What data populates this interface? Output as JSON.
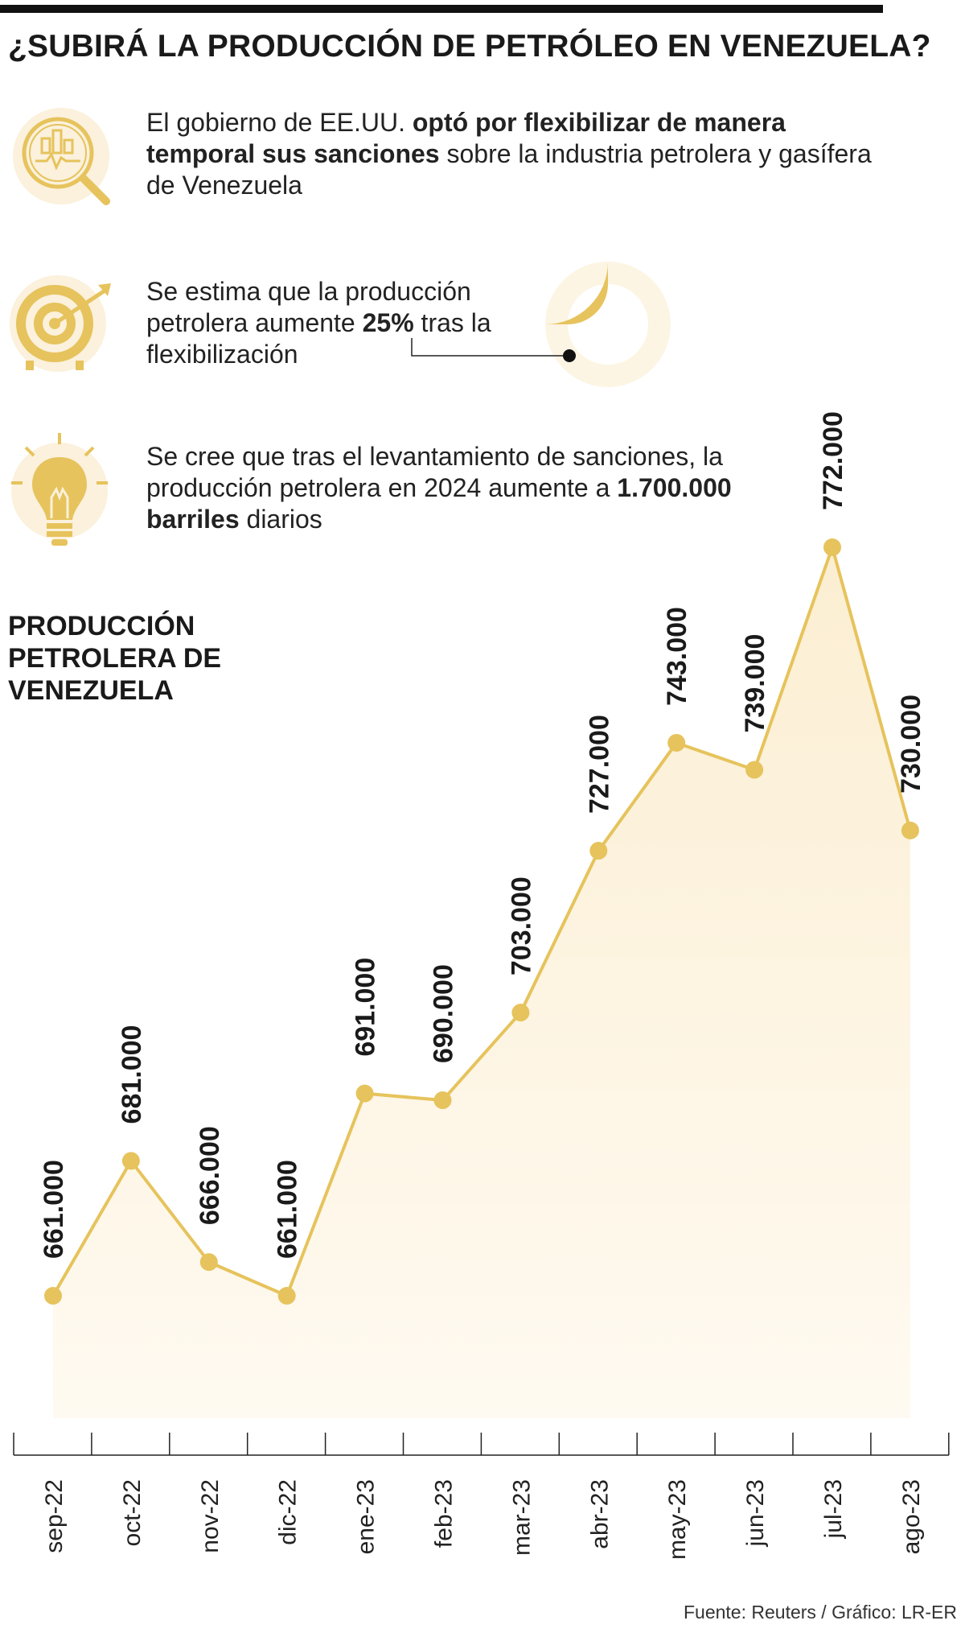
{
  "title": "¿SUBIRÁ LA PRODUCCIÓN DE PETRÓLEO EN VENEZUELA?",
  "facts": [
    {
      "icon": "magnifier-chart-icon",
      "pre": "El gobierno de EE.UU. ",
      "bold": "optó por flexibilizar de manera temporal sus sanciones",
      "post": " sobre la industria petrolera y gasífera de Venezuela"
    },
    {
      "icon": "target-arrow-icon",
      "pre": "Se estima que la producción petrolera aumente ",
      "bold": "25%",
      "post": " tras la flexibilización",
      "donut_percent": 25
    },
    {
      "icon": "light-bulb-icon",
      "pre": "Se cree que tras el levantamiento de sanciones, la producción petrolera en 2024 aumente a ",
      "bold": "1.700.000 barriles",
      "post": " diarios"
    }
  ],
  "chart_title": "PRODUCCIÓN PETROLERA DE VENEZUELA",
  "source": "Fuente: Reuters / Gráfico: LR-ER",
  "colors": {
    "accent": "#e6c35c",
    "fill": "#fdf5e4",
    "icon_bg": "#fbf1dc",
    "text": "#1a1a1a"
  },
  "chart_data": {
    "type": "area",
    "x": [
      "sep-22",
      "oct-22",
      "nov-22",
      "dic-22",
      "ene-23",
      "feb-23",
      "mar-23",
      "abr-23",
      "may-23",
      "jun-23",
      "jul-23",
      "ago-23"
    ],
    "values": [
      661000,
      681000,
      666000,
      661000,
      691000,
      690000,
      703000,
      727000,
      743000,
      739000,
      772000,
      730000
    ],
    "labels": [
      "661.000",
      "681.000",
      "666.000",
      "661.000",
      "691.000",
      "690.000",
      "703.000",
      "727.000",
      "743.000",
      "739.000",
      "772.000",
      "730.000"
    ],
    "title": "PRODUCCIÓN PETROLERA DE VENEZUELA",
    "xlabel": "",
    "ylabel": "",
    "grid": false
  }
}
